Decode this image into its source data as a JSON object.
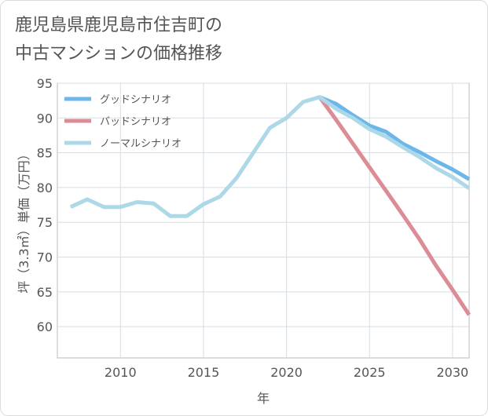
{
  "title_lines": [
    "鹿児島県鹿児島市住吉町の",
    "中古マンションの価格推移"
  ],
  "chart_data": {
    "type": "line",
    "xlabel": "年",
    "ylabel": "坪（3.3㎡）単価（万円）",
    "xlim": [
      2006.2,
      2031
    ],
    "ylim": [
      55.5,
      95
    ],
    "x_ticks": [
      2010,
      2015,
      2020,
      2025,
      2030
    ],
    "y_ticks": [
      60,
      65,
      70,
      75,
      80,
      85,
      90,
      95
    ],
    "grid": true,
    "legend_position": "top-left",
    "series": [
      {
        "name": "グッドシナリオ",
        "color": "#6cb6ea",
        "x": [
          2022,
          2023,
          2024,
          2025,
          2026,
          2027,
          2028,
          2029,
          2030,
          2031
        ],
        "y": [
          93.0,
          92.0,
          90.4,
          88.9,
          88.0,
          86.3,
          85.1,
          83.8,
          82.6,
          81.2
        ]
      },
      {
        "name": "バッドシナリオ",
        "color": "#dc8c95",
        "x": [
          2022,
          2023,
          2024,
          2025,
          2026,
          2027,
          2028,
          2029,
          2030,
          2031
        ],
        "y": [
          93.0,
          89.7,
          86.3,
          82.9,
          79.5,
          76.1,
          72.6,
          68.8,
          65.3,
          61.7
        ]
      },
      {
        "name": "ノーマルシナリオ",
        "color": "#add8e8",
        "x": [
          2007,
          2008,
          2009,
          2010,
          2011,
          2012,
          2013,
          2014,
          2015,
          2016,
          2017,
          2018,
          2019,
          2020,
          2021,
          2022,
          2023,
          2024,
          2025,
          2026,
          2027,
          2028,
          2029,
          2030,
          2031
        ],
        "y": [
          77.2,
          78.3,
          77.2,
          77.2,
          77.9,
          77.7,
          75.9,
          75.9,
          77.6,
          78.7,
          81.4,
          85.0,
          88.6,
          90.0,
          92.3,
          93.0,
          91.3,
          90.0,
          88.4,
          87.3,
          85.8,
          84.4,
          82.8,
          81.5,
          79.9
        ]
      }
    ]
  }
}
